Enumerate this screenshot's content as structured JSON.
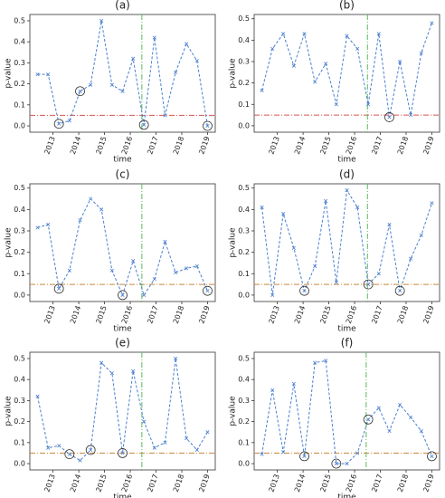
{
  "chart_data": [
    {
      "type": "line",
      "title": "(a)",
      "x_label": "time",
      "y_label": "p-value",
      "color": "#4a7fd0",
      "x": [
        2012.4,
        2012.81,
        2013.23,
        2013.64,
        2014.05,
        2014.46,
        2014.88,
        2015.29,
        2015.7,
        2016.11,
        2016.53,
        2016.94,
        2017.35,
        2017.76,
        2018.18,
        2018.59,
        2019.0
      ],
      "values": [
        0.245,
        0.245,
        0.01,
        0.025,
        0.165,
        0.195,
        0.5,
        0.195,
        0.165,
        0.32,
        0.005,
        0.42,
        0.05,
        0.255,
        0.39,
        0.31,
        0.0
      ],
      "highlight": [
        2,
        4,
        10,
        16
      ],
      "hline": 0.05,
      "hline_color": "#d9534f",
      "vline": 2016.45,
      "vline_color": "#5cb85c",
      "xlim": [
        2012.1,
        2019.3
      ],
      "xticks": [
        2013,
        2014,
        2015,
        2016,
        2017,
        2018,
        2019
      ],
      "ylim": [
        -0.03,
        0.53
      ],
      "yticks": [
        {
          "value": 0,
          "label": "0.0"
        },
        0.1,
        0.2,
        0.3,
        0.4,
        0.5
      ]
    },
    {
      "type": "line",
      "title": "(b)",
      "x_label": "time",
      "y_label": "p-value",
      "color": "#4a7fd0",
      "x": [
        2012.4,
        2012.81,
        2013.23,
        2013.64,
        2014.05,
        2014.46,
        2014.88,
        2015.29,
        2015.7,
        2016.11,
        2016.53,
        2016.94,
        2017.35,
        2017.76,
        2018.18,
        2018.59,
        2019.0
      ],
      "values": [
        0.165,
        0.36,
        0.43,
        0.28,
        0.43,
        0.205,
        0.29,
        0.1,
        0.42,
        0.36,
        0.1,
        0.43,
        0.04,
        0.3,
        0.05,
        0.34,
        0.48
      ],
      "highlight": [
        12
      ],
      "hline": 0.05,
      "hline_color": "#d9534f",
      "vline": 2016.5,
      "vline_color": "#5cb85c",
      "xlim": [
        2012.1,
        2019.3
      ],
      "xticks": [
        2013,
        2014,
        2015,
        2016,
        2017,
        2018,
        2019
      ],
      "ylim": [
        -0.03,
        0.52
      ],
      "yticks": [
        {
          "value": 0,
          "label": "0.0"
        },
        0.1,
        0.2,
        0.3,
        0.4,
        0.5
      ]
    },
    {
      "type": "line",
      "title": "(c)",
      "x_label": "time",
      "y_label": "p-value",
      "color": "#4a7fd0",
      "x": [
        2012.4,
        2012.81,
        2013.23,
        2013.64,
        2014.05,
        2014.46,
        2014.88,
        2015.29,
        2015.7,
        2016.11,
        2016.53,
        2016.94,
        2017.35,
        2017.76,
        2018.18,
        2018.59,
        2019.0
      ],
      "values": [
        0.315,
        0.33,
        0.03,
        0.115,
        0.35,
        0.45,
        0.4,
        0.115,
        0.0,
        0.16,
        0.0,
        0.075,
        0.25,
        0.105,
        0.125,
        0.135,
        0.02
      ],
      "highlight": [
        2,
        8,
        16
      ],
      "hline": 0.05,
      "hline_color": "#c9873a",
      "vline": 2016.45,
      "vline_color": "#5cb85c",
      "xlim": [
        2012.1,
        2019.3
      ],
      "xticks": [
        2013,
        2014,
        2015,
        2016,
        2017,
        2018,
        2019
      ],
      "ylim": [
        -0.03,
        0.52
      ],
      "yticks": [
        {
          "value": 0,
          "label": "0.0"
        },
        0.1,
        0.2,
        0.3,
        0.4,
        0.5
      ]
    },
    {
      "type": "line",
      "title": "(d)",
      "x_label": "time",
      "y_label": "p-value",
      "color": "#4a7fd0",
      "x": [
        2012.4,
        2012.81,
        2013.23,
        2013.64,
        2014.05,
        2014.46,
        2014.88,
        2015.29,
        2015.7,
        2016.11,
        2016.53,
        2016.94,
        2017.35,
        2017.76,
        2018.18,
        2018.59,
        2019.0
      ],
      "values": [
        0.41,
        0.0,
        0.38,
        0.22,
        0.02,
        0.135,
        0.44,
        0.06,
        0.49,
        0.41,
        0.05,
        0.1,
        0.33,
        0.02,
        0.17,
        0.28,
        0.43
      ],
      "highlight": [
        4,
        10,
        13
      ],
      "hline": 0.05,
      "hline_color": "#c9873a",
      "vline": 2016.5,
      "vline_color": "#5cb85c",
      "xlim": [
        2012.1,
        2019.3
      ],
      "xticks": [
        2013,
        2014,
        2015,
        2016,
        2017,
        2018,
        2019
      ],
      "ylim": [
        -0.03,
        0.52
      ],
      "yticks": [
        {
          "value": 0,
          "label": "0.0"
        },
        0.1,
        0.2,
        0.3,
        0.4,
        0.5
      ]
    },
    {
      "type": "line",
      "title": "(e)",
      "x_label": "time",
      "y_label": "p-value",
      "color": "#4a7fd0",
      "x": [
        2012.4,
        2012.81,
        2013.23,
        2013.64,
        2014.05,
        2014.46,
        2014.88,
        2015.29,
        2015.7,
        2016.11,
        2016.53,
        2016.94,
        2017.35,
        2017.76,
        2018.18,
        2018.59,
        2019.0
      ],
      "values": [
        0.32,
        0.075,
        0.085,
        0.045,
        0.015,
        0.065,
        0.48,
        0.43,
        0.05,
        0.44,
        0.2,
        0.075,
        0.1,
        0.5,
        0.12,
        0.065,
        0.15
      ],
      "highlight": [
        3,
        5,
        8
      ],
      "hline": 0.05,
      "hline_color": "#c9873a",
      "vline": 2016.45,
      "vline_color": "#5cb85c",
      "xlim": [
        2012.1,
        2019.3
      ],
      "xticks": [
        2013,
        2014,
        2015,
        2016,
        2017,
        2018,
        2019
      ],
      "ylim": [
        -0.03,
        0.53
      ],
      "yticks": [
        {
          "value": 0,
          "label": "0.0"
        },
        0.1,
        0.2,
        0.3,
        0.4,
        0.5
      ]
    },
    {
      "type": "line",
      "title": "(f)",
      "x_label": "time",
      "y_label": "p-value",
      "color": "#4a7fd0",
      "x": [
        2012.4,
        2012.81,
        2013.23,
        2013.64,
        2014.05,
        2014.46,
        2014.88,
        2015.29,
        2015.7,
        2016.11,
        2016.53,
        2016.94,
        2017.35,
        2017.76,
        2018.18,
        2018.59,
        2019.0
      ],
      "values": [
        0.045,
        0.35,
        0.055,
        0.38,
        0.035,
        0.48,
        0.49,
        0.0,
        0.0,
        0.05,
        0.21,
        0.265,
        0.155,
        0.28,
        0.22,
        0.155,
        0.035
      ],
      "highlight": [
        4,
        7,
        10,
        16
      ],
      "hline": 0.05,
      "hline_color": "#c9873a",
      "vline": 2016.45,
      "vline_color": "#5cb85c",
      "xlim": [
        2012.1,
        2019.3
      ],
      "xticks": [
        2013,
        2014,
        2015,
        2016,
        2017,
        2018,
        2019
      ],
      "ylim": [
        -0.03,
        0.53
      ],
      "yticks": [
        {
          "value": 0,
          "label": "0.0"
        },
        0.1,
        0.2,
        0.3,
        0.4,
        0.5
      ]
    }
  ]
}
